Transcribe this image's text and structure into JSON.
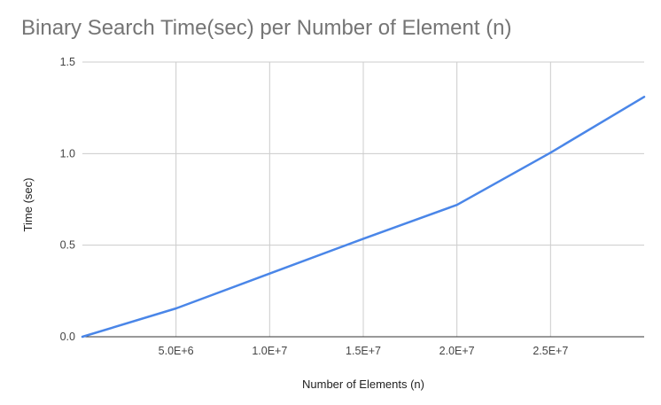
{
  "chart_data": {
    "type": "line",
    "title": "Binary Search Time(sec) per Number of Element (n)",
    "xlabel": "Number of Elements (n)",
    "ylabel": "Time (sec)",
    "xlim": [
      0,
      30000000
    ],
    "ylim": [
      0,
      1.5
    ],
    "x_ticks": [
      5000000,
      10000000,
      15000000,
      20000000,
      25000000
    ],
    "x_tick_labels": [
      "5.0E+6",
      "1.0E+7",
      "1.5E+7",
      "2.0E+7",
      "2.5E+7"
    ],
    "y_ticks": [
      0,
      0.5,
      1.0,
      1.5
    ],
    "y_tick_labels": [
      "0.0",
      "0.5",
      "1.0",
      "1.5"
    ],
    "grid": true,
    "legend": "none",
    "series": [
      {
        "color": "#4a86e8",
        "x": [
          0,
          5000000,
          10000000,
          15000000,
          20000000,
          25000000,
          30000000
        ],
        "y": [
          0,
          0.155,
          0.345,
          0.535,
          0.72,
          1.005,
          1.31
        ]
      }
    ]
  }
}
